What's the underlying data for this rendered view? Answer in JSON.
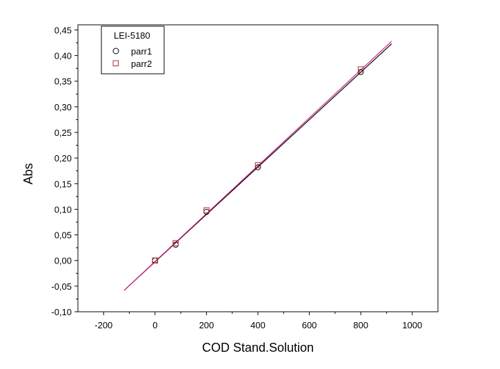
{
  "chart_data": {
    "type": "scatter",
    "title": "",
    "xlabel": "COD Stand.Solution",
    "ylabel": "Abs",
    "xlim": [
      -300,
      1100
    ],
    "ylim": [
      -0.1,
      0.46
    ],
    "x_ticks": [
      -200,
      0,
      200,
      400,
      600,
      800,
      1000
    ],
    "x_tick_labels": [
      "-200",
      "0",
      "200",
      "400",
      "600",
      "800",
      "1000"
    ],
    "y_ticks": [
      -0.1,
      -0.05,
      0.0,
      0.05,
      0.1,
      0.15,
      0.2,
      0.25,
      0.3,
      0.35,
      0.4,
      0.45
    ],
    "y_tick_labels": [
      "-0,10",
      "-0,05",
      "0,00",
      "0,05",
      "0,10",
      "0,15",
      "0,20",
      "0,25",
      "0,30",
      "0,35",
      "0,40",
      "0,45"
    ],
    "grid": false,
    "legend": {
      "title": "LEI-5180",
      "position": "top-left"
    },
    "series": [
      {
        "name": "parr1",
        "marker": "circle",
        "color": "#000000",
        "x": [
          0,
          80,
          200,
          400,
          800
        ],
        "y": [
          0.0,
          0.031,
          0.095,
          0.182,
          0.368
        ],
        "fit": {
          "x": [
            -120,
            920
          ],
          "y": [
            -0.058,
            0.423
          ],
          "color": "#000000"
        }
      },
      {
        "name": "parr2",
        "marker": "square",
        "color": "#b03030",
        "x": [
          0,
          80,
          200,
          400,
          800
        ],
        "y": [
          0.0,
          0.034,
          0.098,
          0.186,
          0.373
        ],
        "fit": {
          "x": [
            -120,
            920
          ],
          "y": [
            -0.058,
            0.428
          ],
          "color": "#cc1f8a"
        }
      }
    ]
  }
}
